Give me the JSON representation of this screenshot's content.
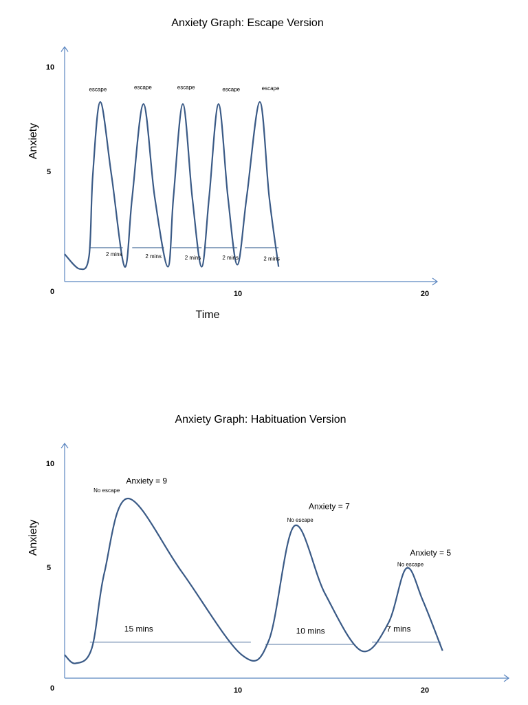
{
  "chart_data": [
    {
      "type": "line",
      "title": "Anxiety Graph: Escape Version",
      "xlabel": "Time",
      "ylabel": "Anxiety",
      "xlim": [
        0,
        20
      ],
      "ylim": [
        0,
        10
      ],
      "x_ticks": [
        "0",
        "10",
        "20"
      ],
      "y_ticks": [
        "10",
        "5"
      ],
      "series": [
        {
          "points": [
            {
              "x": 0,
              "y": 1.3
            },
            {
              "x": 0.8,
              "y": 0.6
            },
            {
              "x": 1.3,
              "y": 1.2
            },
            {
              "x": 1.5,
              "y": 5
            },
            {
              "x": 1.9,
              "y": 8.5
            },
            {
              "x": 2.5,
              "y": 5
            },
            {
              "x": 3.2,
              "y": 0.7
            },
            {
              "x": 3.6,
              "y": 4
            },
            {
              "x": 4.2,
              "y": 8.4
            },
            {
              "x": 4.8,
              "y": 4
            },
            {
              "x": 5.5,
              "y": 0.7
            },
            {
              "x": 5.8,
              "y": 4
            },
            {
              "x": 6.3,
              "y": 8.4
            },
            {
              "x": 6.8,
              "y": 4
            },
            {
              "x": 7.3,
              "y": 0.7
            },
            {
              "x": 7.7,
              "y": 4
            },
            {
              "x": 8.2,
              "y": 8.4
            },
            {
              "x": 8.7,
              "y": 4
            },
            {
              "x": 9.2,
              "y": 0.8
            },
            {
              "x": 9.7,
              "y": 4
            },
            {
              "x": 10.4,
              "y": 8.5
            },
            {
              "x": 10.9,
              "y": 4
            },
            {
              "x": 11.4,
              "y": 0.7
            }
          ]
        }
      ],
      "baselines": [
        {
          "x1": 1.3,
          "x2": 3.1,
          "y": 1.6
        },
        {
          "x1": 3.6,
          "x2": 5.3,
          "y": 1.6
        },
        {
          "x1": 5.7,
          "x2": 7.3,
          "y": 1.6
        },
        {
          "x1": 7.5,
          "x2": 9.2,
          "y": 1.6
        },
        {
          "x1": 9.6,
          "x2": 11.4,
          "y": 1.6
        }
      ],
      "annotations": [
        {
          "text": "escape",
          "x": 1.3,
          "y": 9.0,
          "size": "small"
        },
        {
          "text": "escape",
          "x": 3.7,
          "y": 9.1,
          "size": "small"
        },
        {
          "text": "escape",
          "x": 6.0,
          "y": 9.1,
          "size": "small"
        },
        {
          "text": "escape",
          "x": 8.4,
          "y": 9.0,
          "size": "small"
        },
        {
          "text": "escape",
          "x": 10.5,
          "y": 9.05,
          "size": "small"
        },
        {
          "text": "2 mins",
          "x": 2.2,
          "y": 1.2,
          "size": "small"
        },
        {
          "text": "2 mins",
          "x": 4.3,
          "y": 1.1,
          "size": "small"
        },
        {
          "text": "2 mins",
          "x": 6.4,
          "y": 1.05,
          "size": "small"
        },
        {
          "text": "2 mins",
          "x": 8.4,
          "y": 1.05,
          "size": "small"
        },
        {
          "text": "2 mins",
          "x": 10.6,
          "y": 1.0,
          "size": "small"
        }
      ]
    },
    {
      "type": "line",
      "title": "Anxiety Graph: Habituation Version",
      "xlabel": "",
      "ylabel": "Anxiety",
      "xlim": [
        0,
        20
      ],
      "ylim": [
        0,
        10
      ],
      "x_ticks": [
        "0",
        "10",
        "20"
      ],
      "y_ticks": [
        "10",
        "5"
      ],
      "series": [
        {
          "points": [
            {
              "x": 0,
              "y": 1.1
            },
            {
              "x": 0.6,
              "y": 0.7
            },
            {
              "x": 1.5,
              "y": 1.4
            },
            {
              "x": 2.2,
              "y": 5
            },
            {
              "x": 3.5,
              "y": 8.5
            },
            {
              "x": 6.5,
              "y": 5
            },
            {
              "x": 9.8,
              "y": 1.1
            },
            {
              "x": 11.3,
              "y": 1.8
            },
            {
              "x": 12.7,
              "y": 7.2
            },
            {
              "x": 14.4,
              "y": 4
            },
            {
              "x": 16.4,
              "y": 1.3
            },
            {
              "x": 17.9,
              "y": 2.6
            },
            {
              "x": 18.9,
              "y": 5.2
            },
            {
              "x": 19.8,
              "y": 3.7
            },
            {
              "x": 20.9,
              "y": 1.3
            }
          ]
        }
      ],
      "baselines": [
        {
          "x1": 1.4,
          "x2": 10.3,
          "y": 1.7
        },
        {
          "x1": 11.1,
          "x2": 16.0,
          "y": 1.6
        },
        {
          "x1": 17.0,
          "x2": 20.8,
          "y": 1.7
        }
      ],
      "annotations": [
        {
          "text": "No escape",
          "x": 1.6,
          "y": 8.8,
          "size": "small"
        },
        {
          "text": "Anxiety = 9",
          "x": 3.4,
          "y": 9.2,
          "size": "medium"
        },
        {
          "text": "No escape",
          "x": 12.3,
          "y": 7.4,
          "size": "small"
        },
        {
          "text": "Anxiety = 7",
          "x": 13.5,
          "y": 8.0,
          "size": "medium"
        },
        {
          "text": "No escape",
          "x": 18.4,
          "y": 5.3,
          "size": "small"
        },
        {
          "text": "Anxiety = 5",
          "x": 19.1,
          "y": 5.8,
          "size": "medium"
        },
        {
          "text": "15 mins",
          "x": 3.3,
          "y": 2.2,
          "size": "medium"
        },
        {
          "text": "10 mins",
          "x": 12.8,
          "y": 2.1,
          "size": "medium"
        },
        {
          "text": "7 mins",
          "x": 17.8,
          "y": 2.2,
          "size": "medium"
        }
      ]
    }
  ],
  "colors": {
    "curve": "#3a5a86",
    "axis": "#5b86c0",
    "baseline": "#4a6f9c",
    "text": "#000000"
  }
}
